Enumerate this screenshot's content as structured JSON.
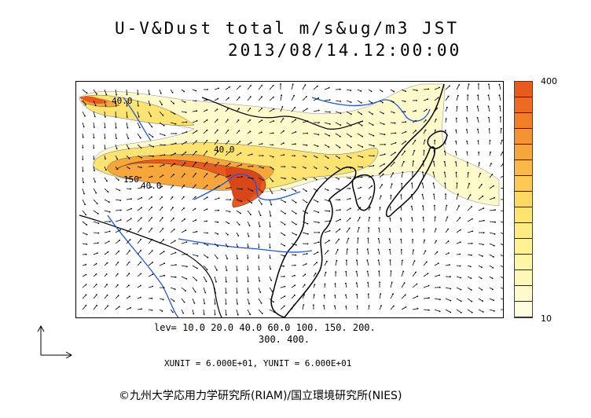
{
  "title": {
    "line1": "U-V&Dust total m/s&ug/m3 JST",
    "line2": "2013/08/14.12:00:00"
  },
  "colorbar": {
    "max_label": "400",
    "min_label": "10",
    "colors": [
      "#e85a1e",
      "#ee6a22",
      "#f27d28",
      "#f59232",
      "#f7a63c",
      "#f9b848",
      "#fbc954",
      "#fcd862",
      "#fde472",
      "#fdec82",
      "#fef294",
      "#fef6a6",
      "#fef8b8",
      "#fefacc",
      "#fefce0"
    ]
  },
  "legend": {
    "lev_line1": "lev= 10.0 20.0 40.0 60.0 100. 150. 200.",
    "lev_line2": "300. 400.",
    "units": "XUNIT = 6.000E+01, YUNIT = 6.000E+01"
  },
  "contour_labels": [
    "40.0",
    "40.0",
    "150",
    "40.0"
  ],
  "copyright": "©九州大学応用力学研究所(RIAM)/国立環境研究所(NIES)"
}
